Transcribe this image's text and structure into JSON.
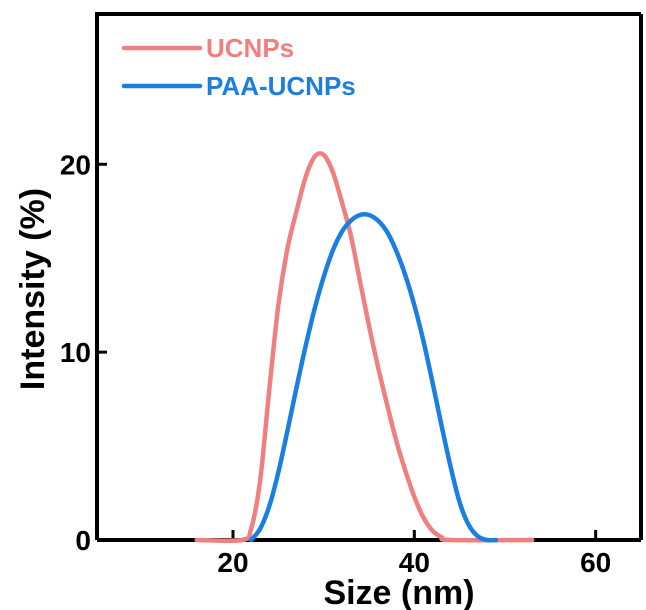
{
  "chart_data": {
    "type": "line",
    "title": "",
    "xlabel": "Size (nm)",
    "ylabel": "Intensity (%)",
    "xlim": [
      5,
      65
    ],
    "ylim": [
      0,
      28
    ],
    "xticks": [
      20,
      40,
      60
    ],
    "yticks": [
      0,
      10,
      20
    ],
    "grid": false,
    "legend_position": "top-left",
    "series": [
      {
        "name": "UCNPs",
        "color": "#f08080",
        "x": [
          16,
          21,
          22,
          23,
          24,
          25,
          26,
          27,
          28,
          29,
          30,
          31,
          32,
          33,
          34,
          35,
          36,
          37,
          38,
          39,
          40,
          41,
          42,
          43,
          44,
          53
        ],
        "y": [
          0,
          0,
          0.6,
          3.2,
          8.0,
          12.5,
          15.5,
          17.5,
          19.3,
          20.4,
          20.5,
          19.6,
          18.0,
          16.2,
          13.8,
          11.4,
          9.2,
          7.2,
          5.3,
          3.7,
          2.3,
          1.2,
          0.5,
          0.15,
          0,
          0
        ]
      },
      {
        "name": "PAA-UCNPs",
        "color": "#1a7fe0",
        "x": [
          22,
          23,
          24,
          25,
          26,
          27,
          28,
          29,
          30,
          31,
          32,
          33,
          34,
          35,
          36,
          37,
          38,
          39,
          40,
          41,
          42,
          43,
          44,
          45,
          46,
          47,
          48,
          49
        ],
        "y": [
          0,
          0.6,
          1.8,
          3.6,
          5.8,
          8.1,
          10.3,
          12.3,
          14.0,
          15.4,
          16.4,
          17.0,
          17.3,
          17.3,
          17.0,
          16.4,
          15.4,
          14.1,
          12.5,
          10.6,
          8.4,
          6.1,
          3.9,
          2.0,
          0.8,
          0.2,
          0,
          0
        ]
      }
    ]
  }
}
